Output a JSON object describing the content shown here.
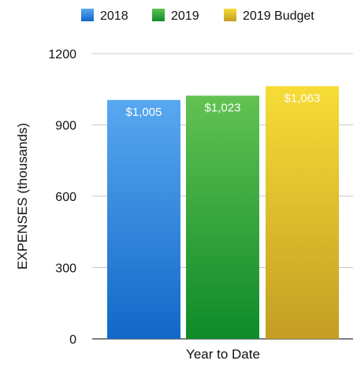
{
  "chart_data": {
    "type": "bar",
    "categories": [
      "Year to Date"
    ],
    "series": [
      {
        "name": "2018",
        "values": [
          1005
        ],
        "label": "$1,005",
        "color": "#3a8ee6"
      },
      {
        "name": "2019",
        "values": [
          1023
        ],
        "label": "$1,023",
        "color": "#3aa53a"
      },
      {
        "name": "2019 Budget",
        "values": [
          1063
        ],
        "label": "$1,063",
        "color": "#e8c41e"
      }
    ],
    "title": "",
    "xlabel": "Year to Date",
    "ylabel": "EXPENSES (thousands)",
    "ylim": [
      0,
      1200
    ],
    "yticks": [
      "0",
      "300",
      "600",
      "900",
      "1200"
    ],
    "grid": true,
    "legend_position": "top"
  },
  "colors": {
    "2018_light": "#58a8f0",
    "2018_dark": "#1268c8",
    "2019_light": "#62c252",
    "2019_dark": "#0e8a2a",
    "budget_light": "#f7dc36",
    "budget_dark": "#c49e24",
    "gridline": "#c8c8c8",
    "axis": "#333333",
    "text": "#111111"
  }
}
